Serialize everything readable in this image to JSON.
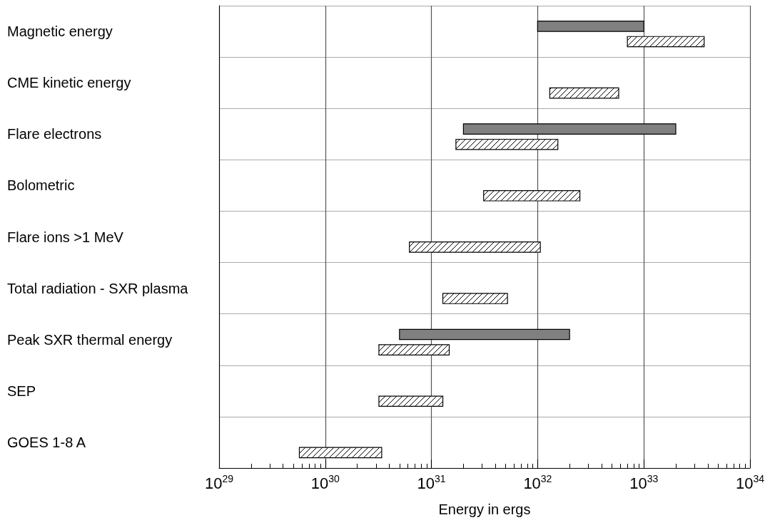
{
  "chart_data": {
    "type": "bar",
    "orientation": "horizontal",
    "log": "x",
    "xlabel": "Energy in ergs",
    "grid": true,
    "categories": [
      "Magnetic energy",
      "CME kinetic energy",
      "Flare electrons",
      "Bolometric",
      "Flare ions >1 MeV",
      "Total radiation - SXR plasma",
      "Peak SXR thermal energy",
      "SEP",
      "GOES 1-8 A"
    ],
    "xlim": [
      1e+29,
      1e+34
    ],
    "xticks": [
      {
        "value": 1e+29,
        "label": "10$^{29}$"
      },
      {
        "value": 1e+30,
        "label": "10$^{30}$"
      },
      {
        "value": 1e+31,
        "label": "10$^{31}$"
      },
      {
        "value": 1e+32,
        "label": "10$^{32}$"
      },
      {
        "value": 1e+33,
        "label": "10$^{33}$"
      },
      {
        "value": 1e+34,
        "label": "10$^{34}$"
      }
    ],
    "series": [
      {
        "color": "#808080",
        "base": [
          1e+32,
          null,
          2e+31,
          null,
          null,
          null,
          5e+30,
          null,
          null
        ],
        "values": [
          9e+32,
          null,
          1.98e+33,
          null,
          null,
          null,
          1.95e+32,
          null,
          null
        ]
      },
      {
        "color": "#000000",
        "base": [
          7e+32,
          1.3e+32,
          1.7e+31,
          3.1e+31,
          6.2e+30,
          1.28e+31,
          3.2e+30,
          3.2e+30,
          5.7e+29
        ],
        "values": [
          3e+33,
          4.5e+32,
          1.38e+32,
          2.19e+32,
          9.98e+31,
          3.92e+31,
          1.15e+31,
          9.6e+30,
          2.83e+30
        ]
      }
    ]
  }
}
